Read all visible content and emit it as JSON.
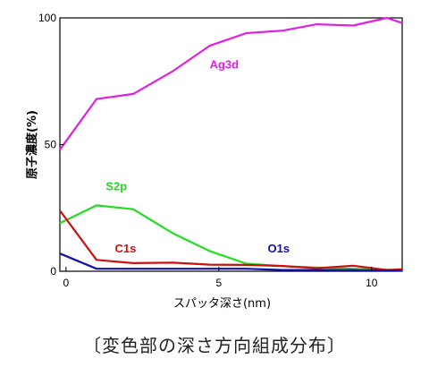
{
  "caption": "〔変色部の深さ方向組成分布〕",
  "chart_data": {
    "type": "line",
    "xlabel": "スパッタ深さ(nm)",
    "ylabel": "原子濃度(%)",
    "xlim": [
      -0.2,
      11
    ],
    "ylim": [
      0,
      100
    ],
    "xticks": [
      0,
      5,
      10
    ],
    "xtick_labels": [
      "0",
      "5",
      "10"
    ],
    "yticks": [
      0,
      50,
      100
    ],
    "ytick_labels": [
      "0",
      "50",
      "100"
    ],
    "grid": false,
    "series": [
      {
        "name": "Ag3d",
        "color": "#e020e0",
        "x": [
          -0.2,
          1,
          2.2,
          3.5,
          4.7,
          5.9,
          7.1,
          8.2,
          9.4,
          10.5,
          11
        ],
        "y": [
          48,
          68,
          70,
          79,
          89,
          94,
          95,
          97.5,
          97,
          100,
          98
        ]
      },
      {
        "name": "S2p",
        "color": "#22dd22",
        "x": [
          -0.2,
          1,
          2.2,
          3.5,
          4.7,
          5.9,
          7.1,
          8.2,
          9.4,
          10.5,
          11
        ],
        "y": [
          19,
          26,
          24.5,
          15,
          8,
          3,
          2,
          1.5,
          1,
          0.6,
          0.3
        ]
      },
      {
        "name": "C1s",
        "color": "#cc1111",
        "x": [
          -0.2,
          1,
          2.2,
          3.5,
          4.7,
          5.9,
          7.1,
          8.2,
          9.4,
          10.5,
          11
        ],
        "y": [
          24,
          4.5,
          3.2,
          3.4,
          2.6,
          2.5,
          2.1,
          1.2,
          2.2,
          0.5,
          0.8
        ]
      },
      {
        "name": "O1s",
        "color": "#1111aa",
        "x": [
          -0.2,
          1,
          2.2,
          3.5,
          4.7,
          5.9,
          7.1,
          8.2,
          9.4,
          10.5,
          11
        ],
        "y": [
          7,
          1,
          1,
          1,
          1,
          1,
          0.5,
          0.5,
          0.5,
          0.3,
          0.3
        ]
      }
    ]
  }
}
